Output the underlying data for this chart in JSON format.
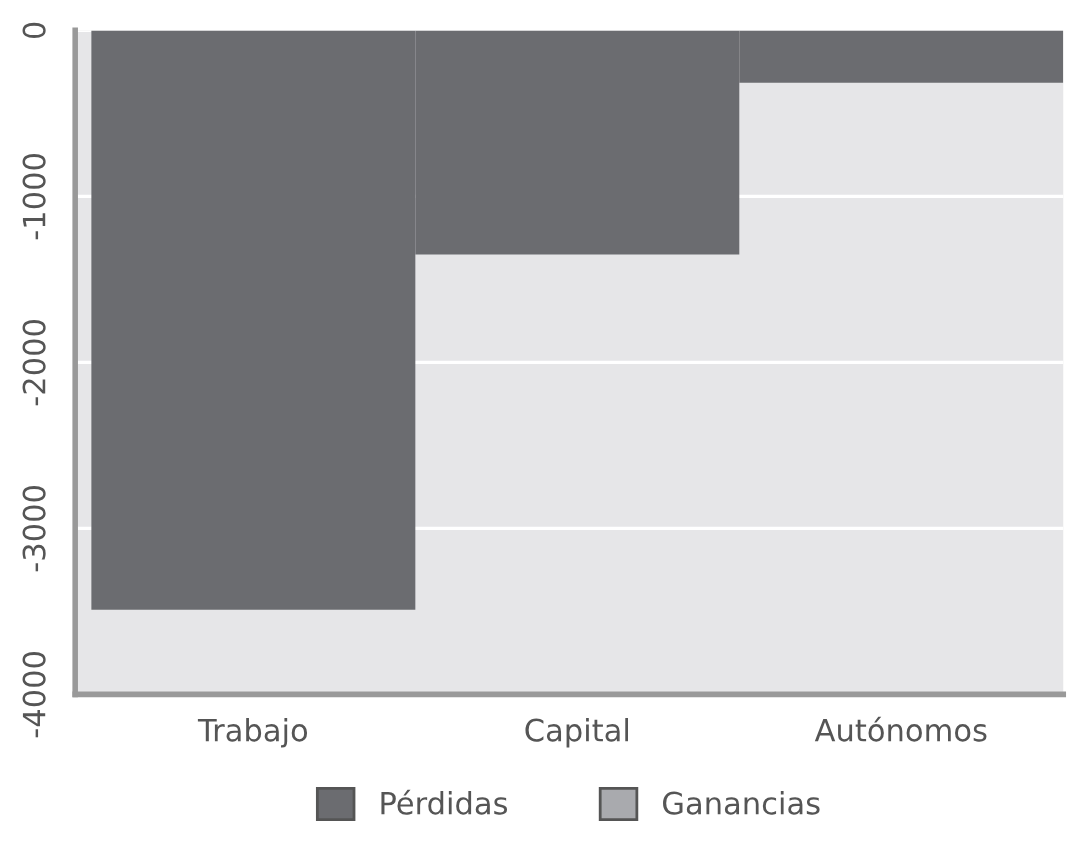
{
  "chart_data": {
    "type": "bar",
    "categories": [
      "Trabajo",
      "Capital",
      "Autónomos"
    ],
    "series": [
      {
        "name": "Pérdidas",
        "color": "#6b6c70",
        "values": [
          -3490,
          -1350,
          -315
        ]
      },
      {
        "name": "Ganancias",
        "color": "#a9aaae",
        "values": [
          null,
          null,
          null
        ]
      }
    ],
    "ylim": [
      -4000,
      0
    ],
    "yticks": [
      -4000,
      -3000,
      -2000,
      -1000,
      0
    ],
    "grid": "y",
    "legend": "bottom"
  }
}
